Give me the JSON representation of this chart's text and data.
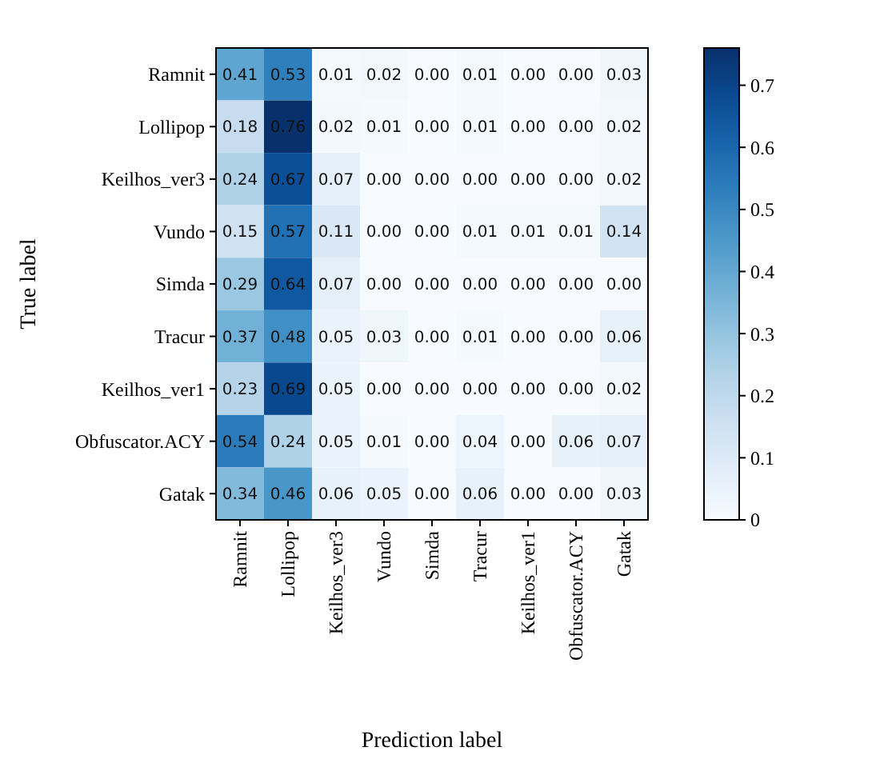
{
  "chart_data": {
    "type": "heatmap",
    "xlabel": "Prediction label",
    "ylabel": "True label",
    "categories": [
      "Ramnit",
      "Lollipop",
      "Keilhos_ver3",
      "Vundo",
      "Simda",
      "Tracur",
      "Keilhos_ver1",
      "Obfuscator.ACY",
      "Gatak"
    ],
    "y_categories": [
      "Ramnit",
      "Lollipop",
      "Keilhos_ver3",
      "Vundo",
      "Simda",
      "Tracur",
      "Keilhos_ver1",
      "Obfuscator.ACY",
      "Gatak"
    ],
    "cells": [
      [
        0.41,
        0.53,
        0.01,
        0.02,
        0.0,
        0.01,
        0.0,
        0.0,
        0.03
      ],
      [
        0.18,
        0.76,
        0.02,
        0.01,
        0.0,
        0.01,
        0.0,
        0.0,
        0.02
      ],
      [
        0.24,
        0.67,
        0.07,
        0.0,
        0.0,
        0.0,
        0.0,
        0.0,
        0.02
      ],
      [
        0.15,
        0.57,
        0.11,
        0.0,
        0.0,
        0.01,
        0.01,
        0.01,
        0.14
      ],
      [
        0.29,
        0.64,
        0.07,
        0.0,
        0.0,
        0.0,
        0.0,
        0.0,
        0.0
      ],
      [
        0.37,
        0.48,
        0.05,
        0.03,
        0.0,
        0.01,
        0.0,
        0.0,
        0.06
      ],
      [
        0.23,
        0.69,
        0.05,
        0.0,
        0.0,
        0.0,
        0.0,
        0.0,
        0.02
      ],
      [
        0.54,
        0.24,
        0.05,
        0.01,
        0.0,
        0.04,
        0.0,
        0.06,
        0.07
      ],
      [
        0.34,
        0.46,
        0.06,
        0.05,
        0.0,
        0.06,
        0.0,
        0.0,
        0.03
      ]
    ],
    "cell_labels": [
      [
        "0.41",
        "0.53",
        "0.01",
        "0.02",
        "0.00",
        "0.01",
        "0.00",
        "0.00",
        "0.03"
      ],
      [
        "0.18",
        "0.76",
        "0.02",
        "0.01",
        "0.00",
        "0.01",
        "0.00",
        "0.00",
        "0.02"
      ],
      [
        "0.24",
        "0.67",
        "0.07",
        "0.00",
        "0.00",
        "0.00",
        "0.00",
        "0.00",
        "0.02"
      ],
      [
        "0.15",
        "0.57",
        "0.11",
        "0.00",
        "0.00",
        "0.01",
        "0.01",
        "0.01",
        "0.14"
      ],
      [
        "0.29",
        "0.64",
        "0.07",
        "0.00",
        "0.00",
        "0.00",
        "0.00",
        "0.00",
        "0.00"
      ],
      [
        "0.37",
        "0.48",
        "0.05",
        "0.03",
        "0.00",
        "0.01",
        "0.00",
        "0.00",
        "0.06"
      ],
      [
        "0.23",
        "0.69",
        "0.05",
        "0.00",
        "0.00",
        "0.00",
        "0.00",
        "0.00",
        "0.02"
      ],
      [
        "0.54",
        "0.24",
        "0.05",
        "0.01",
        "0.00",
        "0.04",
        "0.00",
        "0.06",
        "0.07"
      ],
      [
        "0.34",
        "0.46",
        "0.06",
        "0.05",
        "0.00",
        "0.06",
        "0.00",
        "0.00",
        "0.03"
      ]
    ],
    "clim": [
      0,
      0.76
    ],
    "cticks": [
      0,
      {
        "value": 0.1,
        "label": "0.1"
      },
      {
        "value": 0.2,
        "label": "0.2"
      },
      {
        "value": 0.3,
        "label": "0.3"
      },
      {
        "value": 0.4,
        "label": "0.4"
      },
      {
        "value": 0.5,
        "label": "0.5"
      },
      {
        "value": 0.6,
        "label": "0.6"
      },
      {
        "value": 0.7,
        "label": "0.7"
      }
    ]
  }
}
